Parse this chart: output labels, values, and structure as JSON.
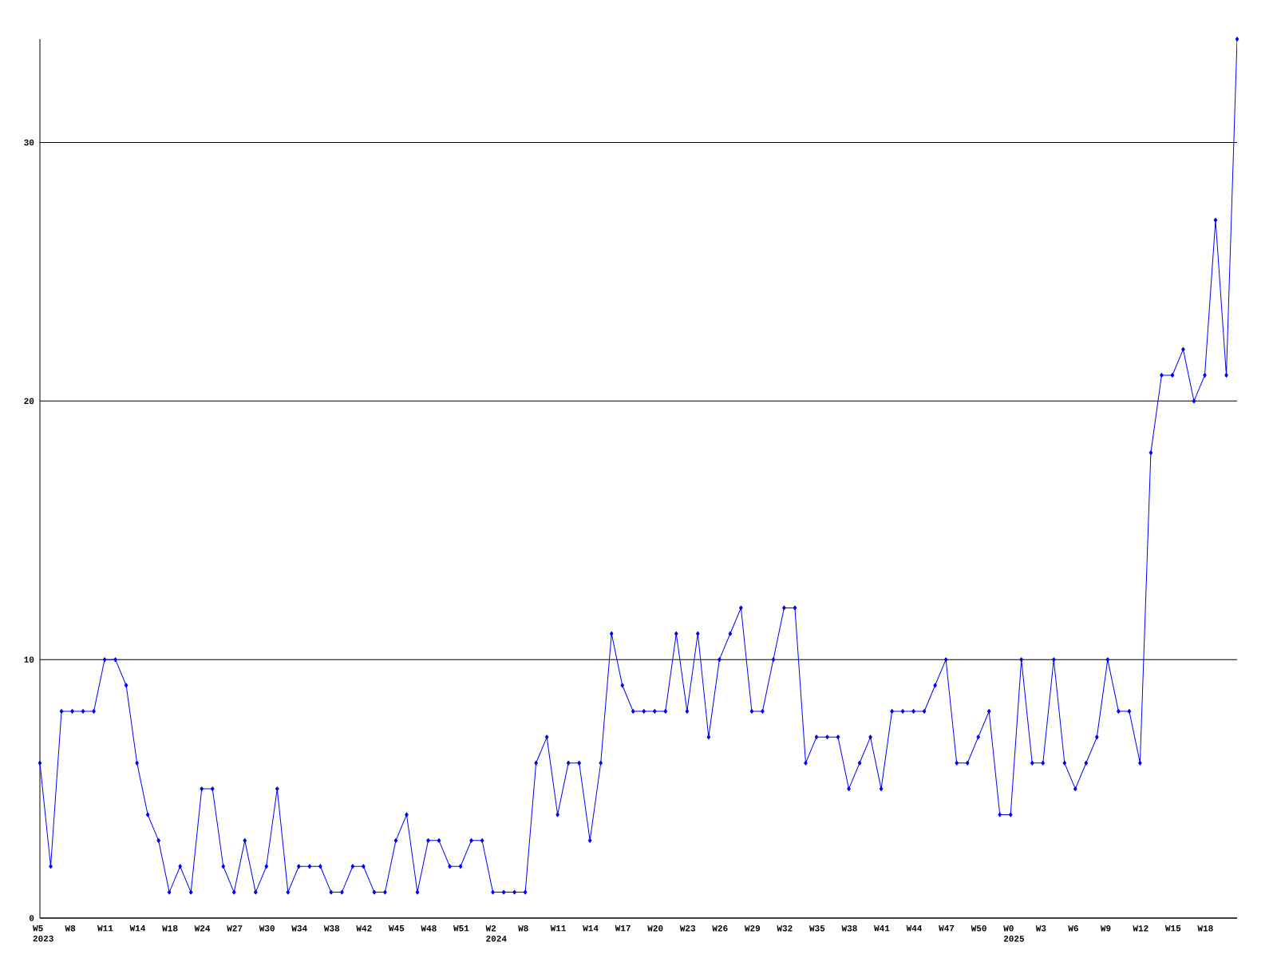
{
  "chart_data": {
    "type": "line",
    "categories": [
      "W5 2023",
      null,
      null,
      "W8",
      null,
      null,
      "W11",
      null,
      null,
      "W14",
      null,
      null,
      "W18",
      null,
      null,
      "W24",
      null,
      null,
      "W27",
      null,
      null,
      "W30",
      null,
      null,
      "W34",
      null,
      null,
      "W38",
      null,
      null,
      "W42",
      null,
      null,
      "W45",
      null,
      null,
      "W48",
      null,
      null,
      "W51",
      null,
      null,
      "W2 2024",
      null,
      null,
      "W8",
      null,
      null,
      "W11",
      null,
      null,
      "W14",
      null,
      null,
      "W17",
      null,
      null,
      "W20",
      null,
      null,
      "W23",
      null,
      null,
      "W26",
      null,
      null,
      "W29",
      null,
      null,
      "W32",
      null,
      null,
      "W35",
      null,
      null,
      "W38",
      null,
      null,
      "W41",
      null,
      null,
      "W44",
      null,
      null,
      "W47",
      null,
      null,
      "W50",
      null,
      null,
      "W0 2025",
      null,
      null,
      "W3",
      null,
      null,
      "W6",
      null,
      null,
      "W9",
      null,
      null,
      "W12",
      null,
      null,
      "W15",
      null,
      null,
      "W18",
      null,
      null,
      null
    ],
    "values": [
      6,
      2,
      8,
      8,
      8,
      8,
      10,
      10,
      9,
      6,
      4,
      3,
      1,
      2,
      1,
      5,
      5,
      2,
      1,
      3,
      1,
      2,
      5,
      1,
      2,
      2,
      2,
      1,
      1,
      2,
      2,
      1,
      1,
      3,
      4,
      1,
      3,
      3,
      2,
      2,
      3,
      3,
      1,
      1,
      1,
      1,
      6,
      7,
      4,
      6,
      6,
      3,
      6,
      11,
      9,
      8,
      8,
      8,
      8,
      11,
      8,
      11,
      7,
      10,
      11,
      12,
      8,
      8,
      10,
      12,
      12,
      6,
      7,
      7,
      7,
      5,
      6,
      7,
      5,
      8,
      8,
      8,
      8,
      9,
      10,
      6,
      6,
      7,
      8,
      4,
      4,
      10,
      6,
      6,
      10,
      6,
      5,
      6,
      7,
      10,
      8,
      8,
      6,
      18,
      21,
      21,
      22,
      20,
      21,
      27,
      21,
      34
    ],
    "color": "#0000ff",
    "ylim": [
      0,
      34
    ],
    "yticks": [
      0,
      10,
      20,
      30
    ],
    "grid": "y",
    "marker": "diamond",
    "line_style": "solid"
  }
}
